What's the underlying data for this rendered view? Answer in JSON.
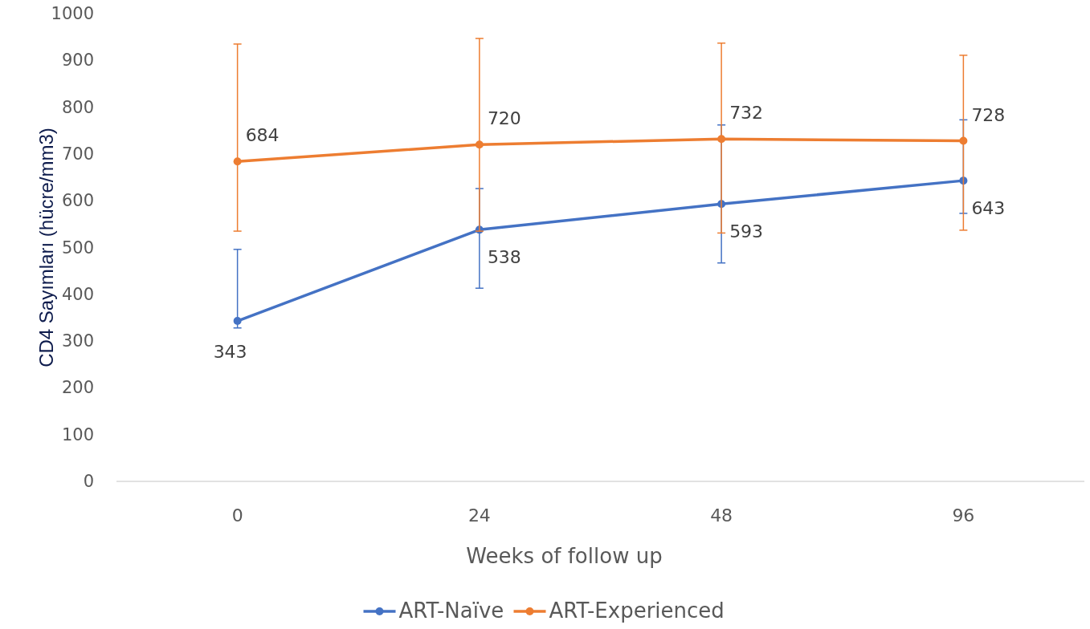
{
  "chart_data": {
    "type": "line",
    "xlabel": "Weeks of follow up",
    "ylabel": "CD4 Sayımları (hücre/mm3)",
    "categories": [
      "0",
      "24",
      "48",
      "96"
    ],
    "ylim": [
      0,
      1000
    ],
    "yticks": [
      0,
      100,
      200,
      300,
      400,
      500,
      600,
      700,
      800,
      900,
      1000
    ],
    "legend": "bottom",
    "marker": "circle",
    "data_labels": true,
    "series": [
      {
        "name": "ART-Naïve",
        "color": "#4472c4",
        "values": [
          343,
          538,
          593,
          643
        ],
        "errors": [
          [
            328,
            496
          ],
          [
            413,
            626
          ],
          [
            467,
            762
          ],
          [
            573,
            773
          ]
        ]
      },
      {
        "name": "ART-Experienced",
        "color": "#ed7d31",
        "values": [
          684,
          720,
          732,
          728
        ],
        "errors": [
          [
            535,
            935
          ],
          [
            535,
            947
          ],
          [
            531,
            937
          ],
          [
            537,
            911
          ]
        ]
      }
    ]
  }
}
